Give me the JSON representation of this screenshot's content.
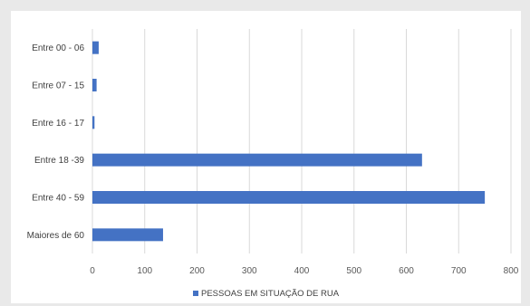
{
  "chart_data": {
    "type": "bar",
    "orientation": "horizontal",
    "categories": [
      "Entre 00 - 06",
      "Entre 07 - 15",
      "Entre 16 - 17",
      "Entre 18 -39",
      "Entre 40 - 59",
      "Maiores de 60"
    ],
    "series": [
      {
        "name": "PESSOAS EM SITUAÇÃO DE RUA",
        "values": [
          12,
          8,
          4,
          630,
          750,
          135
        ],
        "color": "#4472c4"
      }
    ],
    "xlim": [
      0,
      800
    ],
    "xticks": [
      0,
      100,
      200,
      300,
      400,
      500,
      600,
      700,
      800
    ],
    "grid": "vertical",
    "legend_position": "bottom",
    "title": "",
    "xlabel": "",
    "ylabel": ""
  },
  "colors": {
    "bar": "#4472c4",
    "grid": "#d9d9d9",
    "background": "#ffffff",
    "page": "#e9e9e9"
  }
}
